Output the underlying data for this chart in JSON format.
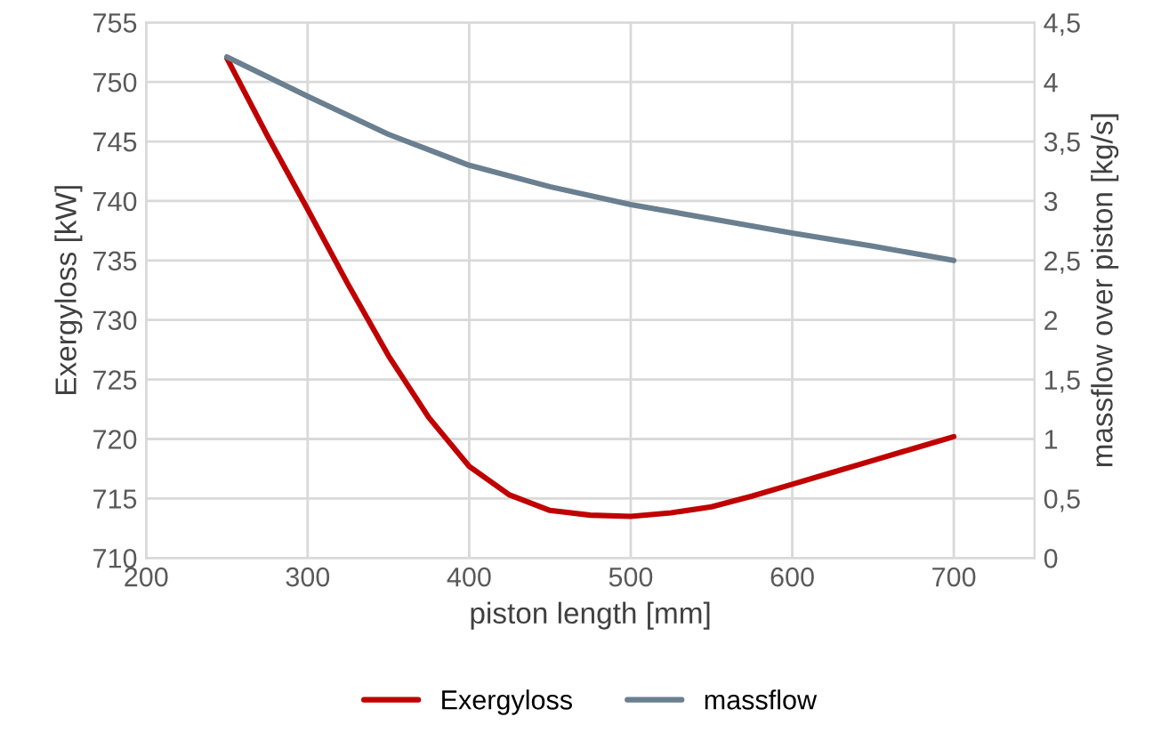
{
  "chart_data": {
    "type": "line",
    "xlabel": "piston length [mm]",
    "ylabel": "Exergyloss [kW]",
    "y2label": "massflow over piston [kg/s]",
    "xlim": [
      200,
      750
    ],
    "xticks": [
      200,
      300,
      400,
      500,
      600,
      700
    ],
    "ylim": [
      710,
      755
    ],
    "yticks": [
      710,
      715,
      720,
      725,
      730,
      735,
      740,
      745,
      750,
      755
    ],
    "y2lim": [
      0,
      4.5
    ],
    "y2ticks": [
      0,
      {
        "value": 0.5,
        "label": "0,5"
      },
      1,
      {
        "value": 1.5,
        "label": "1,5"
      },
      2,
      {
        "value": 2.5,
        "label": "2,5"
      },
      3,
      {
        "value": 3.5,
        "label": "3,5"
      },
      4,
      {
        "value": 4.5,
        "label": "4,5"
      }
    ],
    "grid": true,
    "legend": "bottom",
    "marker": "none",
    "line_style": "solid",
    "series": [
      {
        "name": "Exergyloss",
        "color": "#c00000",
        "x": [
          250,
          275,
          300,
          325,
          350,
          375,
          400,
          425,
          450,
          475,
          500,
          525,
          550,
          575,
          600,
          625,
          650,
          675,
          700
        ],
        "values": [
          752,
          745.5,
          739.3,
          733,
          727,
          721.8,
          717.7,
          715.3,
          714,
          713.6,
          713.5,
          713.8,
          714.3,
          715.2,
          716.2,
          717.2,
          718.2,
          719.2,
          720.2
        ]
      },
      {
        "name": "massflow",
        "color": "#6a7f8f",
        "axis": "y2",
        "x": [
          250,
          300,
          350,
          400,
          450,
          500,
          550,
          600,
          650,
          700
        ],
        "values": [
          4.21,
          3.88,
          3.56,
          3.3,
          3.12,
          2.97,
          2.85,
          2.73,
          2.62,
          2.5
        ]
      }
    ]
  }
}
